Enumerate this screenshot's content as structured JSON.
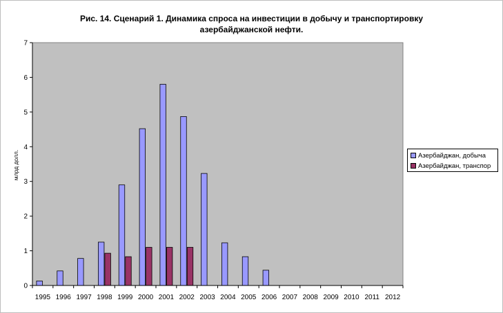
{
  "chart_data": {
    "type": "bar",
    "title_line1": "Рис. 14. Сценарий 1. Динамика спроса на инвестиции в добычу и транспортировку",
    "title_line2": "азербайджанской нефти.",
    "ylabel": "млрд долл.",
    "xlabel": "",
    "ylim": [
      0,
      7
    ],
    "yticks": [
      "0",
      "1",
      "2",
      "3",
      "4",
      "5",
      "6",
      "7"
    ],
    "categories": [
      "1995",
      "1996",
      "1997",
      "1998",
      "1999",
      "2000",
      "2001",
      "2002",
      "2003",
      "2004",
      "2005",
      "2006",
      "2007",
      "2008",
      "2009",
      "2010",
      "2011",
      "2012"
    ],
    "series": [
      {
        "name": "Азербайджан, добыча",
        "color": "#9999ff",
        "values": [
          0.13,
          0.42,
          0.78,
          1.25,
          2.9,
          4.52,
          5.8,
          4.87,
          3.23,
          1.23,
          0.83,
          0.44,
          0,
          0,
          0,
          0,
          0,
          0
        ]
      },
      {
        "name": "Азербайджан, транспор",
        "color": "#993366",
        "values": [
          0,
          0,
          0,
          0.93,
          0.83,
          1.1,
          1.1,
          1.1,
          0,
          0,
          0,
          0,
          0,
          0,
          0,
          0,
          0,
          0
        ]
      }
    ],
    "plot_background": "#c0c0c0",
    "grid": false,
    "legend_position": "right"
  }
}
